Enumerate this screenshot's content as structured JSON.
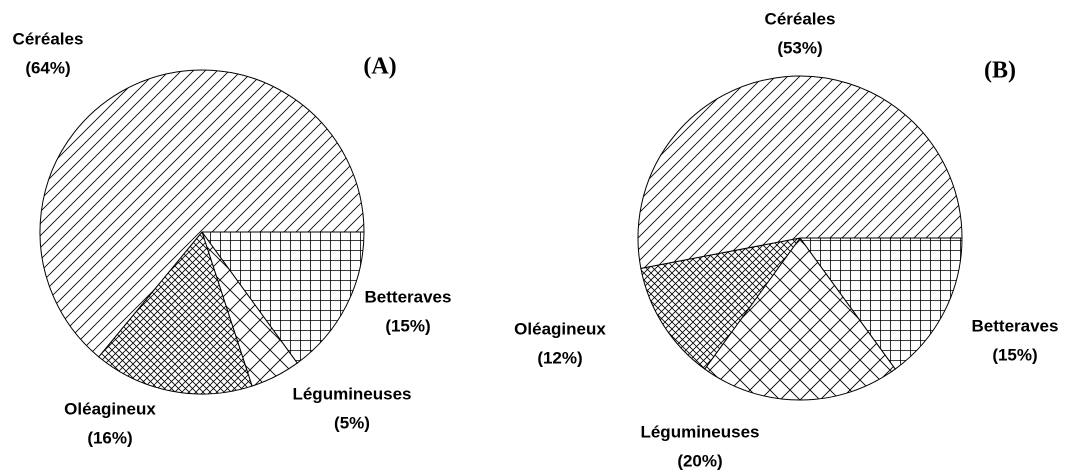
{
  "chart_data": [
    {
      "type": "pie",
      "title": "(A)",
      "categories": [
        "Betteraves",
        "Légumineuses",
        "Oléagineux",
        "Céréales"
      ],
      "values": [
        15,
        5,
        16,
        64
      ],
      "value_labels": [
        "(15%)",
        "(5%)",
        "(16%)",
        "(64%)"
      ]
    },
    {
      "type": "pie",
      "title": "(B)",
      "categories": [
        "Betteraves",
        "Légumineuses",
        "Oléagineux",
        "Céréales"
      ],
      "values": [
        15,
        20,
        12,
        53
      ],
      "value_labels": [
        "(15%)",
        "(20%)",
        "(12%)",
        "(53%)"
      ]
    }
  ]
}
